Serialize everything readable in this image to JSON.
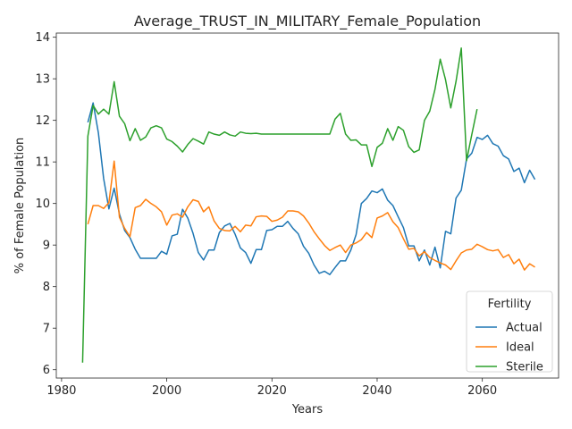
{
  "chart_data": {
    "type": "line",
    "title": "Average_TRUST_IN_MILITARY_Female_Population",
    "xlabel": "Years",
    "ylabel": "% of Female Population",
    "xlim": [
      1979,
      2074.5
    ],
    "ylim": [
      5.8,
      14.1
    ],
    "xticks": [
      1980,
      2000,
      2020,
      2040,
      2060
    ],
    "yticks": [
      6,
      7,
      8,
      9,
      10,
      11,
      12,
      13,
      14
    ],
    "grid": false,
    "legend": {
      "title": "Fertility",
      "position": "bottom-right"
    },
    "series": [
      {
        "name": "Actual",
        "color": "#1f77b4",
        "x": [
          1985,
          1986,
          1987,
          1988,
          1989,
          1990,
          1991,
          1992,
          1993,
          1994,
          1995,
          1996,
          1997,
          1998,
          1999,
          2000,
          2001,
          2002,
          2003,
          2004,
          2005,
          2006,
          2007,
          2008,
          2009,
          2010,
          2011,
          2012,
          2013,
          2014,
          2015,
          2016,
          2017,
          2018,
          2019,
          2020,
          2021,
          2022,
          2023,
          2024,
          2025,
          2026,
          2027,
          2028,
          2029,
          2030,
          2031,
          2032,
          2033,
          2034,
          2035,
          2036,
          2037,
          2038,
          2039,
          2040,
          2041,
          2042,
          2043,
          2044,
          2045,
          2046,
          2047,
          2048,
          2049,
          2050,
          2051,
          2052,
          2053,
          2054,
          2055,
          2056,
          2057,
          2058,
          2059,
          2060,
          2061,
          2062,
          2063,
          2064,
          2065,
          2066,
          2067,
          2068,
          2069,
          2070
        ],
        "y": [
          11.95,
          12.42,
          11.7,
          10.6,
          9.87,
          10.37,
          9.75,
          9.35,
          9.18,
          8.9,
          8.68,
          8.68,
          8.68,
          8.68,
          8.85,
          8.78,
          9.22,
          9.26,
          9.86,
          9.65,
          9.28,
          8.82,
          8.64,
          8.88,
          8.88,
          9.3,
          9.46,
          9.52,
          9.26,
          8.93,
          8.82,
          8.56,
          8.89,
          8.89,
          9.35,
          9.37,
          9.45,
          9.45,
          9.57,
          9.4,
          9.27,
          8.97,
          8.8,
          8.52,
          8.32,
          8.37,
          8.29,
          8.46,
          8.62,
          8.62,
          8.88,
          9.25,
          10.0,
          10.12,
          10.3,
          10.26,
          10.35,
          10.08,
          9.95,
          9.68,
          9.42,
          8.98,
          8.98,
          8.62,
          8.88,
          8.52,
          8.95,
          8.45,
          9.33,
          9.27,
          10.13,
          10.32,
          11.07,
          11.21,
          11.59,
          11.54,
          11.64,
          11.44,
          11.38,
          11.15,
          11.07,
          10.77,
          10.85,
          10.5,
          10.8,
          10.58
        ]
      },
      {
        "name": "Ideal",
        "color": "#ff7f0e",
        "x": [
          1985,
          1986,
          1987,
          1988,
          1989,
          1990,
          1991,
          1992,
          1993,
          1994,
          1995,
          1996,
          1997,
          1998,
          1999,
          2000,
          2001,
          2002,
          2003,
          2004,
          2005,
          2006,
          2007,
          2008,
          2009,
          2010,
          2011,
          2012,
          2013,
          2014,
          2015,
          2016,
          2017,
          2018,
          2019,
          2020,
          2021,
          2022,
          2023,
          2024,
          2025,
          2026,
          2027,
          2028,
          2029,
          2030,
          2031,
          2032,
          2033,
          2034,
          2035,
          2036,
          2037,
          2038,
          2039,
          2040,
          2041,
          2042,
          2043,
          2044,
          2045,
          2046,
          2047,
          2048,
          2049,
          2050,
          2051,
          2052,
          2053,
          2054,
          2055,
          2056,
          2057,
          2058,
          2059,
          2060,
          2061,
          2062,
          2063,
          2064,
          2065,
          2066,
          2067,
          2068,
          2069,
          2070
        ],
        "y": [
          9.5,
          9.95,
          9.95,
          9.88,
          10.02,
          11.02,
          9.67,
          9.4,
          9.2,
          9.9,
          9.95,
          10.1,
          10.0,
          9.92,
          9.8,
          9.48,
          9.72,
          9.75,
          9.67,
          9.92,
          10.09,
          10.05,
          9.8,
          9.92,
          9.58,
          9.4,
          9.35,
          9.34,
          9.45,
          9.32,
          9.48,
          9.46,
          9.68,
          9.7,
          9.69,
          9.57,
          9.6,
          9.67,
          9.82,
          9.82,
          9.8,
          9.7,
          9.53,
          9.32,
          9.15,
          8.99,
          8.87,
          8.94,
          9.0,
          8.82,
          9.0,
          9.05,
          9.13,
          9.3,
          9.18,
          9.65,
          9.7,
          9.78,
          9.56,
          9.42,
          9.15,
          8.9,
          8.92,
          8.74,
          8.84,
          8.7,
          8.63,
          8.57,
          8.52,
          8.41,
          8.62,
          8.81,
          8.88,
          8.9,
          9.02,
          8.96,
          8.89,
          8.86,
          8.89,
          8.7,
          8.77,
          8.55,
          8.66,
          8.4,
          8.55,
          8.47
        ]
      },
      {
        "name": "Sterile",
        "color": "#2ca02c",
        "x": [
          1984,
          1985,
          1986,
          1987,
          1988,
          1989,
          1990,
          1991,
          1992,
          1993,
          1994,
          1995,
          1996,
          1997,
          1998,
          1999,
          2000,
          2001,
          2002,
          2003,
          2004,
          2005,
          2006,
          2007,
          2008,
          2009,
          2010,
          2011,
          2012,
          2013,
          2014,
          2015,
          2016,
          2017,
          2018,
          2019,
          2020,
          2021,
          2022,
          2023,
          2024,
          2025,
          2026,
          2027,
          2028,
          2029,
          2030,
          2031,
          2032,
          2033,
          2034,
          2035,
          2036,
          2037,
          2038,
          2039,
          2040,
          2041,
          2042,
          2043,
          2044,
          2045,
          2046,
          2047,
          2048,
          2049,
          2050,
          2051,
          2052,
          2053,
          2054,
          2055,
          2056,
          2057,
          2058,
          2059
        ],
        "y": [
          6.17,
          11.62,
          12.36,
          12.15,
          12.27,
          12.15,
          12.93,
          12.1,
          11.92,
          11.51,
          11.8,
          11.52,
          11.6,
          11.82,
          11.87,
          11.82,
          11.55,
          11.49,
          11.38,
          11.24,
          11.42,
          11.56,
          11.5,
          11.43,
          11.72,
          11.67,
          11.64,
          11.72,
          11.65,
          11.62,
          11.72,
          11.69,
          11.68,
          11.69,
          11.67,
          11.67,
          11.67,
          11.67,
          11.67,
          11.67,
          11.67,
          11.67,
          11.67,
          11.67,
          11.67,
          11.67,
          11.67,
          11.67,
          12.03,
          12.17,
          11.67,
          11.52,
          11.53,
          11.41,
          11.41,
          10.89,
          11.35,
          11.45,
          11.8,
          11.52,
          11.85,
          11.76,
          11.37,
          11.23,
          11.29,
          12.0,
          12.22,
          12.75,
          13.47,
          12.98,
          12.3,
          12.94,
          13.74,
          11.03,
          11.66,
          12.27
        ]
      }
    ]
  }
}
